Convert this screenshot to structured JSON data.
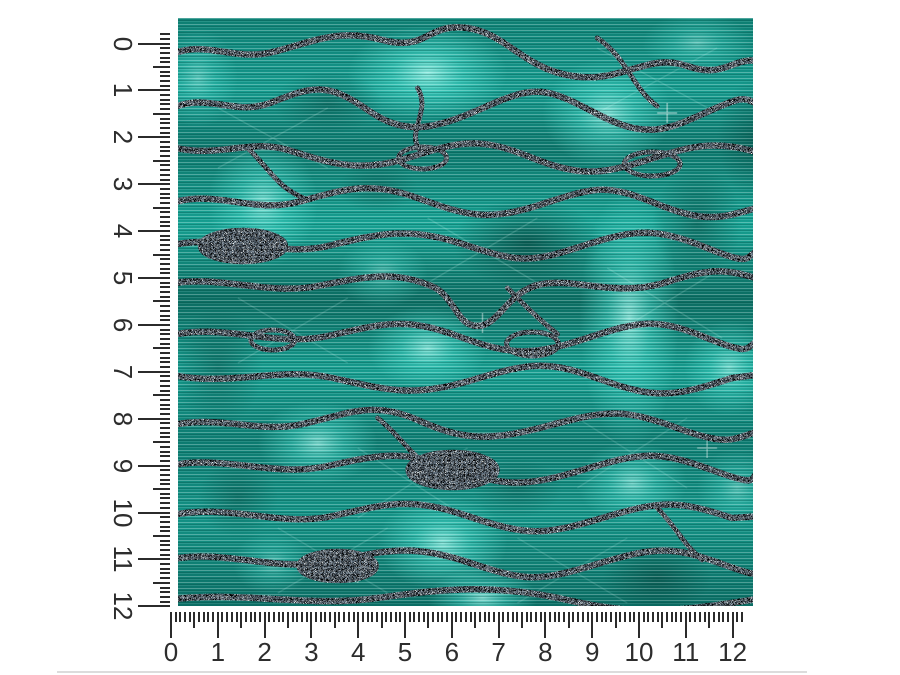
{
  "swatch": {
    "description": "teal glitter agate stripe brushed-metal vinyl pattern swatch"
  },
  "rulers": {
    "unit_divisions": 10,
    "left": {
      "labels": [
        "0",
        "1",
        "2",
        "3",
        "4",
        "5",
        "6",
        "7",
        "8",
        "9",
        "10",
        "11",
        "12"
      ]
    },
    "bottom": {
      "labels": [
        "0",
        "1",
        "2",
        "3",
        "4",
        "5",
        "6",
        "7",
        "8",
        "9",
        "10",
        "11",
        "12"
      ]
    }
  },
  "colors": {
    "page_bg": "#ffffff",
    "tick_color": "#2b2b2b",
    "number_color": "#2d2d2d",
    "divider_color": "#dcdcdc",
    "base_teal": "#0f8478",
    "bright_cyan": "#4fe8d8",
    "highlight_cyan": "#9ff7ec",
    "deep_teal": "#0a5a52",
    "glitter_silver": "#e8e8e8",
    "glitter_black": "#151515"
  }
}
